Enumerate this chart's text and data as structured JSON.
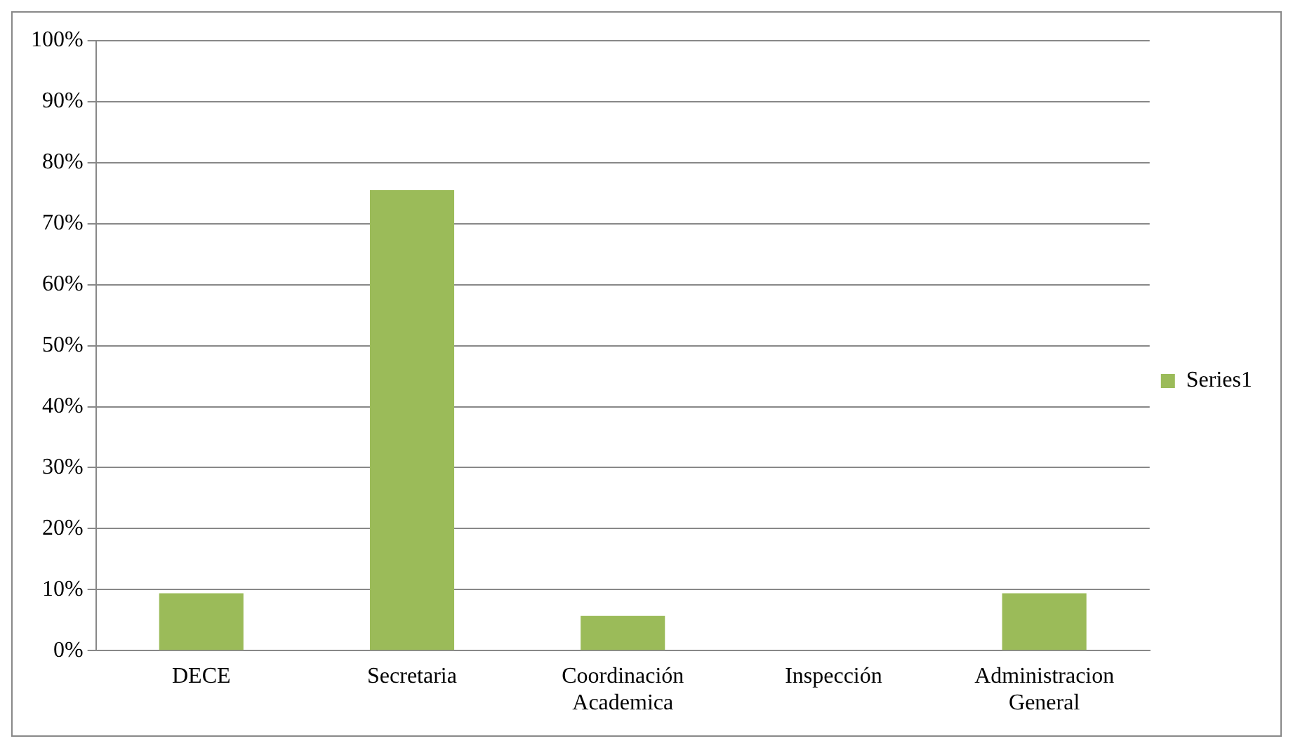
{
  "chart_data": {
    "type": "bar",
    "categories": [
      "DECE",
      "Secretaria",
      "Coordinación Academica",
      "Inspección",
      "Administracion General"
    ],
    "series": [
      {
        "name": "Series1",
        "color": "#9bbb59",
        "values": [
          9.4,
          75.5,
          5.7,
          0,
          9.4
        ]
      }
    ],
    "ylim": [
      0,
      100
    ],
    "yticks": [
      {
        "value": 0,
        "label": "0%"
      },
      {
        "value": 10,
        "label": "10%"
      },
      {
        "value": 20,
        "label": "20%"
      },
      {
        "value": 30,
        "label": "30%"
      },
      {
        "value": 40,
        "label": "40%"
      },
      {
        "value": 50,
        "label": "50%"
      },
      {
        "value": 60,
        "label": "60%"
      },
      {
        "value": 70,
        "label": "70%"
      },
      {
        "value": 80,
        "label": "80%"
      },
      {
        "value": 90,
        "label": "90%"
      },
      {
        "value": 100,
        "label": "100%"
      }
    ],
    "grid": "y",
    "legend": "right"
  }
}
